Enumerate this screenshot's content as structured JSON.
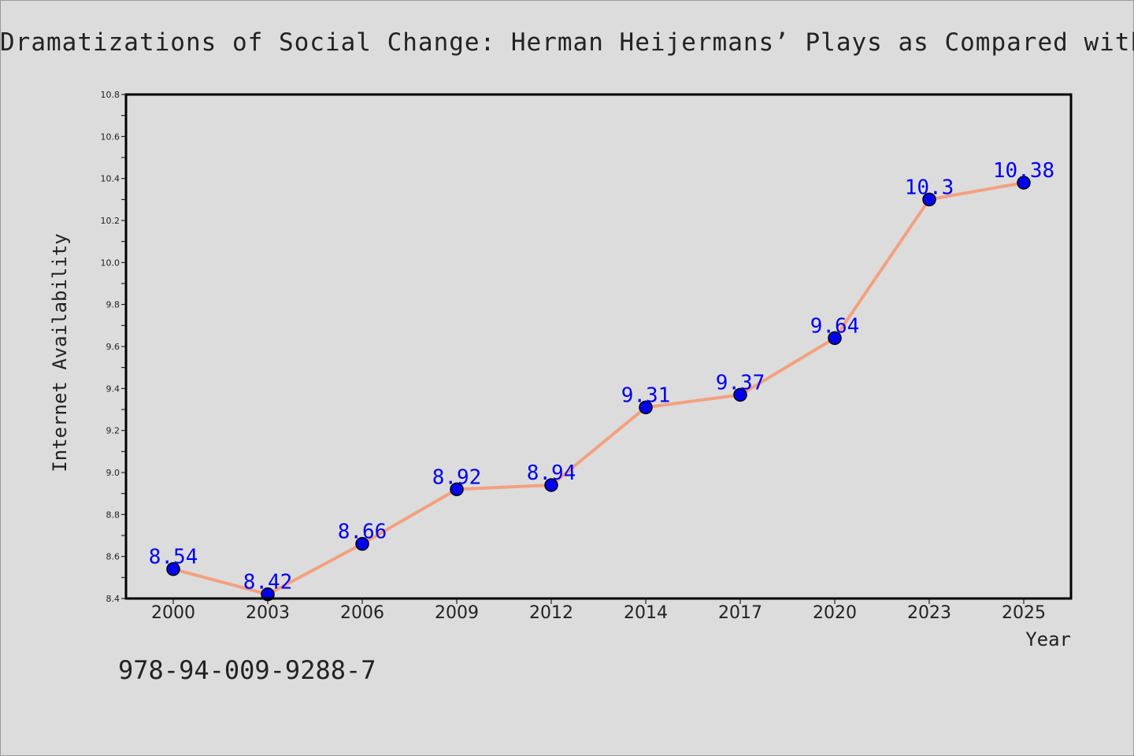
{
  "chart_data": {
    "type": "line",
    "title": "Dramatizations of Social Change: Herman Heijermans’ Plays as Compared with Selected Contemporary Works",
    "xlabel": "Year",
    "ylabel": "Internet Availability",
    "categories": [
      "2000",
      "2003",
      "2006",
      "2009",
      "2012",
      "2014",
      "2017",
      "2020",
      "2023",
      "2025"
    ],
    "values": [
      8.54,
      8.42,
      8.66,
      8.92,
      8.94,
      9.31,
      9.37,
      9.64,
      10.3,
      10.38
    ],
    "value_labels": [
      "8.54",
      "8.42",
      "8.66",
      "8.92",
      "8.94",
      "9.31",
      "9.37",
      "9.64",
      "10.3",
      "10.38"
    ],
    "ylim": [
      8.4,
      10.8
    ],
    "yticks": [
      8.4,
      8.6,
      8.8,
      9.0,
      9.2,
      9.4,
      9.6,
      9.8,
      10.0,
      10.2,
      10.4,
      10.6,
      10.8
    ],
    "ytick_labels": [
      "8.4",
      "8.6",
      "8.8",
      "9.0",
      "9.2",
      "9.4",
      "9.6",
      "9.8",
      "10.0",
      "10.2",
      "10.4",
      "10.6",
      "10.8"
    ],
    "grid": false,
    "legend": "none",
    "line_color": "#f4a07f",
    "marker_color": "#0000ee",
    "label_color": "#0000ee"
  },
  "note": "978-94-009-9288-7"
}
